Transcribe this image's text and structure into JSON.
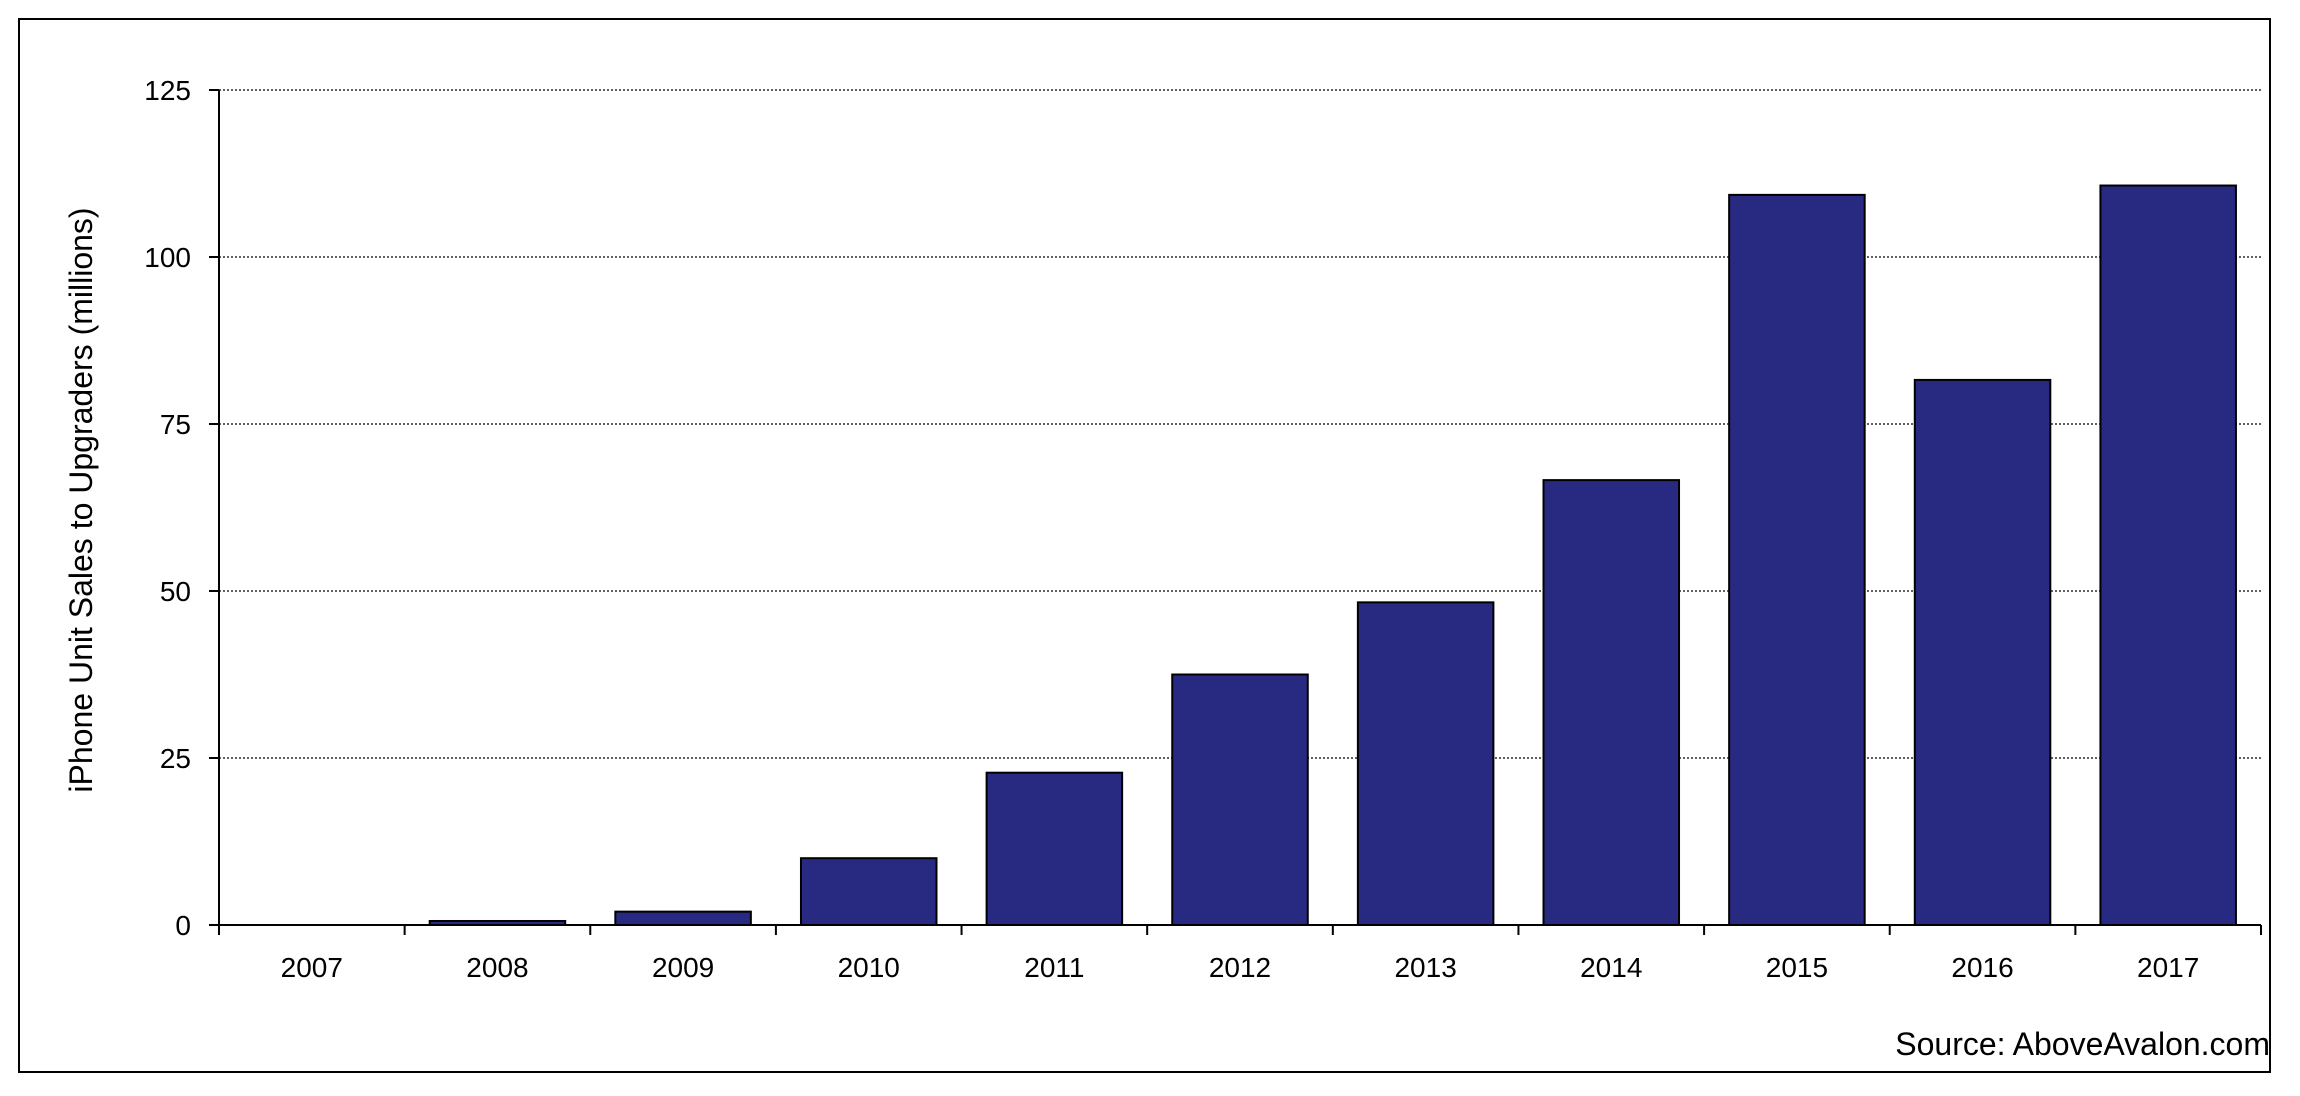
{
  "chart_data": {
    "type": "bar",
    "title": "",
    "xlabel": "",
    "ylabel": "iPhone Unit Sales to Upgraders (millions)",
    "categories": [
      "2007",
      "2008",
      "2009",
      "2010",
      "2011",
      "2012",
      "2013",
      "2014",
      "2015",
      "2016",
      "2017"
    ],
    "values": [
      0,
      0.6,
      2.0,
      10.0,
      22.8,
      37.5,
      48.3,
      66.6,
      109.3,
      81.6,
      110.7
    ],
    "ylim": [
      0,
      125
    ],
    "yticks": [
      "0",
      "25",
      "50",
      "75",
      "100",
      "125"
    ],
    "grid": true,
    "grid_style": "dotted",
    "legend": "none",
    "bar_color": "#282a82",
    "bar_edge_color": "#000000",
    "source": "Source: AboveAvalon.com"
  }
}
